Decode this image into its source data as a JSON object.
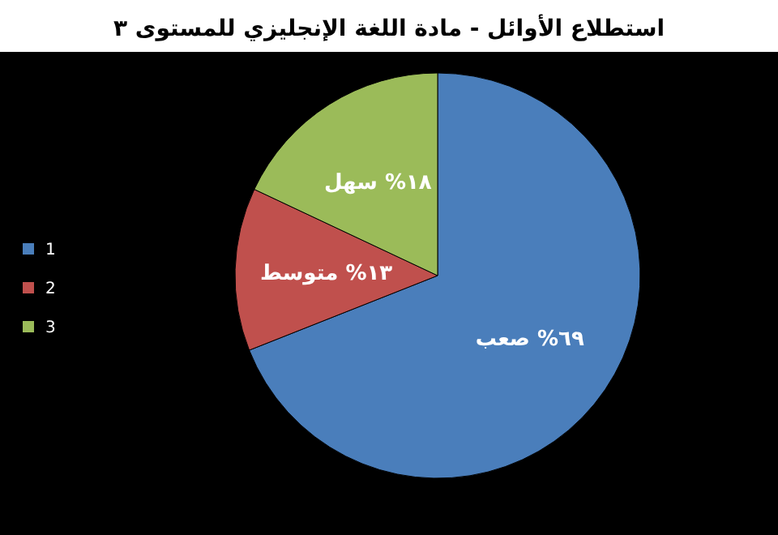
{
  "chart_data": {
    "type": "pie",
    "title": "استطلاع الأوائل - مادة اللغة الإنجليزي للمستوى ٣",
    "categories": [
      "1",
      "2",
      "3"
    ],
    "values": [
      69,
      13,
      18
    ],
    "colors": [
      "#4a7ebb",
      "#c0504d",
      "#9bbb59"
    ],
    "value_labels": [
      "٦٩% صعب",
      "١٣% متوسط",
      "١٨% سهل"
    ],
    "legend": "left"
  }
}
